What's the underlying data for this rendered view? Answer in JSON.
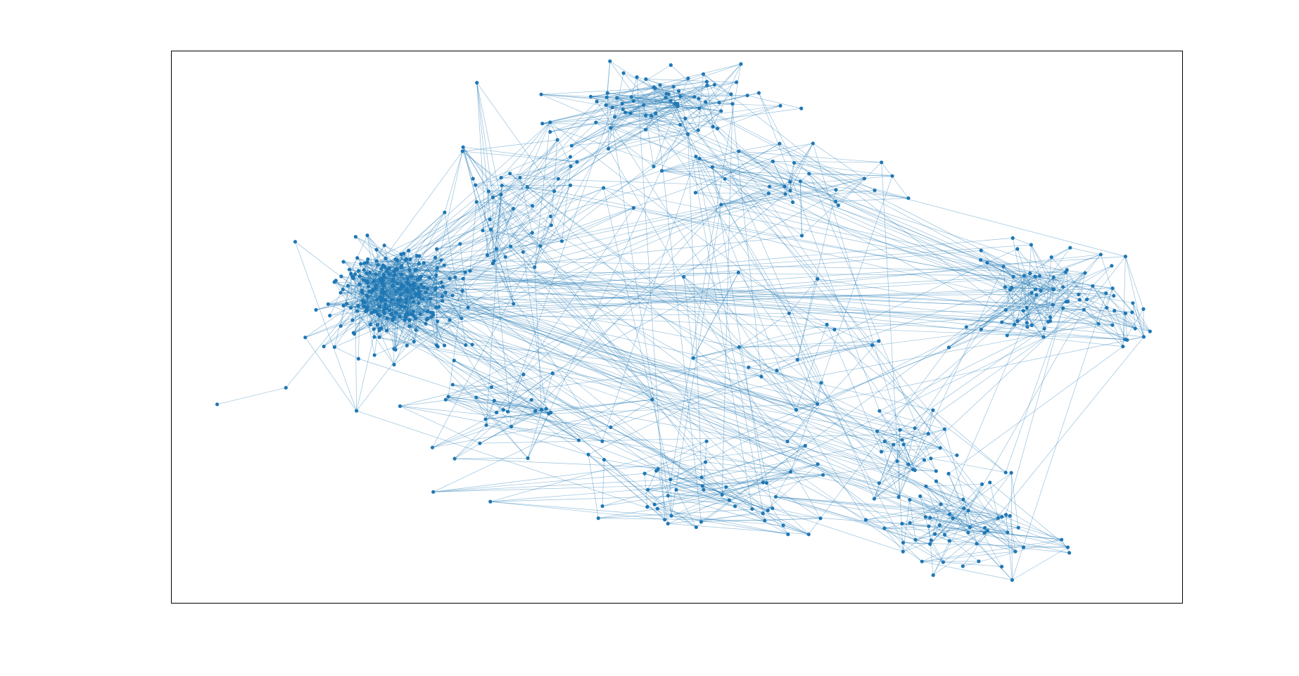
{
  "figure": {
    "type": "network-graph",
    "node_color": "#1f77b4",
    "edge_color": "#1f77b4",
    "background": "#ffffff",
    "frame_color": "#000000",
    "ticks_visible": false,
    "axis_labels_visible": false
  },
  "chart_data": {
    "type": "scatter",
    "title": "",
    "xlabel": "",
    "ylabel": "",
    "grid": false,
    "xlim": [
      0,
      1
    ],
    "ylim": [
      0,
      1
    ],
    "clusters": [
      {
        "center": [
          0.22,
          0.56
        ],
        "spread": [
          0.03,
          0.045
        ],
        "nodes": 260
      },
      {
        "center": [
          0.49,
          0.91
        ],
        "spread": [
          0.06,
          0.035
        ],
        "nodes": 70
      },
      {
        "center": [
          0.61,
          0.76
        ],
        "spread": [
          0.06,
          0.04
        ],
        "nodes": 30
      },
      {
        "center": [
          0.34,
          0.7
        ],
        "spread": [
          0.045,
          0.07
        ],
        "nodes": 45
      },
      {
        "center": [
          0.86,
          0.57
        ],
        "spread": [
          0.035,
          0.055
        ],
        "nodes": 55
      },
      {
        "center": [
          0.93,
          0.52
        ],
        "spread": [
          0.03,
          0.06
        ],
        "nodes": 20
      },
      {
        "center": [
          0.79,
          0.14
        ],
        "spread": [
          0.055,
          0.05
        ],
        "nodes": 55
      },
      {
        "center": [
          0.74,
          0.27
        ],
        "spread": [
          0.035,
          0.04
        ],
        "nodes": 25
      },
      {
        "center": [
          0.52,
          0.2
        ],
        "spread": [
          0.08,
          0.04
        ],
        "nodes": 45
      },
      {
        "center": [
          0.34,
          0.35
        ],
        "spread": [
          0.06,
          0.05
        ],
        "nodes": 30
      },
      {
        "center": [
          0.62,
          0.45
        ],
        "spread": [
          0.06,
          0.08
        ],
        "nodes": 18
      }
    ],
    "outlier_nodes": [
      {
        "x": 0.045,
        "y": 0.36
      },
      {
        "x": 0.113,
        "y": 0.39
      }
    ]
  }
}
